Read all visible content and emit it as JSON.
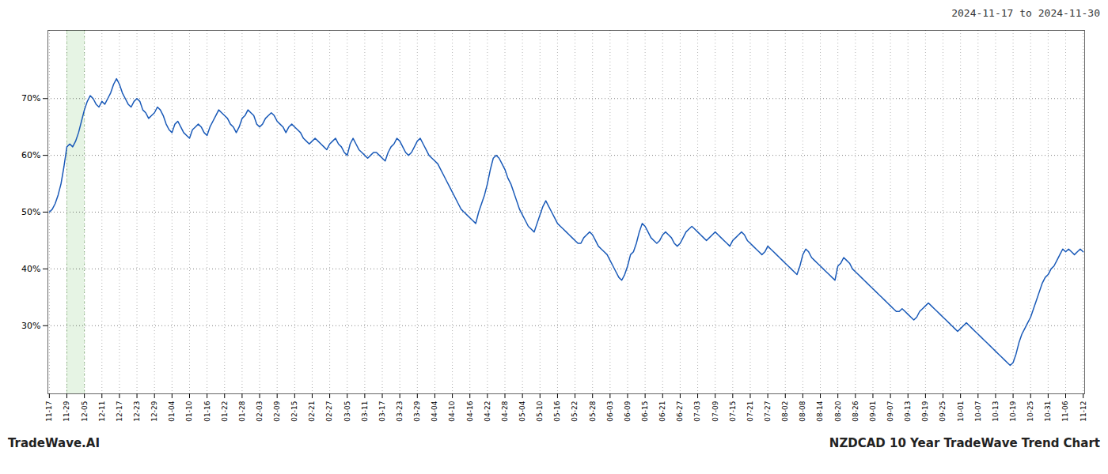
{
  "chart_data": {
    "type": "line",
    "title": "2024-11-17 to 2024-11-30",
    "annotations": [
      "TradeWave.AI",
      "NZDCAD 10 Year TradeWave Trend Chart"
    ],
    "color": "#1a5ab8",
    "grid": true,
    "ylim": [
      18,
      82
    ],
    "yticks": [
      {
        "value": 30,
        "label": "30%"
      },
      {
        "value": 40,
        "label": "40%"
      },
      {
        "value": 50,
        "label": "50%"
      },
      {
        "value": 60,
        "label": "60%"
      },
      {
        "value": 70,
        "label": "70%"
      }
    ],
    "highlight": {
      "start": "11-29",
      "end": "12-05",
      "color": "#d6ecd2"
    },
    "categories": [
      "11-17",
      null,
      null,
      null,
      null,
      null,
      "11-29",
      null,
      null,
      null,
      null,
      null,
      "12-05",
      null,
      null,
      null,
      null,
      null,
      "12-11",
      null,
      null,
      null,
      null,
      null,
      "12-17",
      null,
      null,
      null,
      null,
      null,
      "12-23",
      null,
      null,
      null,
      null,
      null,
      "12-29",
      null,
      null,
      null,
      null,
      null,
      "01-04",
      null,
      null,
      null,
      null,
      null,
      "01-10",
      null,
      null,
      null,
      null,
      null,
      "01-16",
      null,
      null,
      null,
      null,
      null,
      "01-22",
      null,
      null,
      null,
      null,
      null,
      "01-28",
      null,
      null,
      null,
      null,
      null,
      "02-03",
      null,
      null,
      null,
      null,
      null,
      "02-09",
      null,
      null,
      null,
      null,
      null,
      "02-15",
      null,
      null,
      null,
      null,
      null,
      "02-21",
      null,
      null,
      null,
      null,
      null,
      "02-27",
      null,
      null,
      null,
      null,
      null,
      "03-05",
      null,
      null,
      null,
      null,
      null,
      "03-11",
      null,
      null,
      null,
      null,
      null,
      "03-17",
      null,
      null,
      null,
      null,
      null,
      "03-23",
      null,
      null,
      null,
      null,
      null,
      "03-29",
      null,
      null,
      null,
      null,
      null,
      "04-04",
      null,
      null,
      null,
      null,
      null,
      "04-10",
      null,
      null,
      null,
      null,
      null,
      "04-16",
      null,
      null,
      null,
      null,
      null,
      "04-22",
      null,
      null,
      null,
      null,
      null,
      "04-28",
      null,
      null,
      null,
      null,
      null,
      "05-04",
      null,
      null,
      null,
      null,
      null,
      "05-10",
      null,
      null,
      null,
      null,
      null,
      "05-16",
      null,
      null,
      null,
      null,
      null,
      "05-22",
      null,
      null,
      null,
      null,
      null,
      "05-28",
      null,
      null,
      null,
      null,
      null,
      "06-03",
      null,
      null,
      null,
      null,
      null,
      "06-09",
      null,
      null,
      null,
      null,
      null,
      "06-15",
      null,
      null,
      null,
      null,
      null,
      "06-21",
      null,
      null,
      null,
      null,
      null,
      "06-27",
      null,
      null,
      null,
      null,
      null,
      "07-03",
      null,
      null,
      null,
      null,
      null,
      "07-09",
      null,
      null,
      null,
      null,
      null,
      "07-15",
      null,
      null,
      null,
      null,
      null,
      "07-21",
      null,
      null,
      null,
      null,
      null,
      "07-27",
      null,
      null,
      null,
      null,
      null,
      "08-02",
      null,
      null,
      null,
      null,
      null,
      "08-08",
      null,
      null,
      null,
      null,
      null,
      "08-14",
      null,
      null,
      null,
      null,
      null,
      "08-20",
      null,
      null,
      null,
      null,
      null,
      "08-26",
      null,
      null,
      null,
      null,
      null,
      "09-01",
      null,
      null,
      null,
      null,
      null,
      "09-07",
      null,
      null,
      null,
      null,
      null,
      "09-13",
      null,
      null,
      null,
      null,
      null,
      "09-19",
      null,
      null,
      null,
      null,
      null,
      "09-25",
      null,
      null,
      null,
      null,
      null,
      "10-01",
      null,
      null,
      null,
      null,
      null,
      "10-07",
      null,
      null,
      null,
      null,
      null,
      "10-13",
      null,
      null,
      null,
      null,
      null,
      "10-19",
      null,
      null,
      null,
      null,
      null,
      "10-25",
      null,
      null,
      null,
      null,
      null,
      "10-31",
      null,
      null,
      null,
      null,
      null,
      "11-06",
      null,
      null,
      null,
      null,
      null,
      "11-12"
    ],
    "values": [
      50.0,
      50.5,
      51.5,
      53.0,
      55.0,
      58.0,
      61.5,
      62.0,
      61.5,
      62.5,
      64.0,
      66.0,
      68.0,
      69.5,
      70.5,
      70.0,
      69.0,
      68.5,
      69.5,
      69.0,
      70.0,
      71.0,
      72.5,
      73.5,
      72.5,
      71.0,
      70.0,
      69.0,
      68.5,
      69.5,
      70.0,
      69.5,
      68.0,
      67.5,
      66.5,
      67.0,
      67.5,
      68.5,
      68.0,
      67.0,
      65.5,
      64.5,
      64.0,
      65.5,
      66.0,
      65.0,
      64.0,
      63.5,
      63.0,
      64.5,
      65.0,
      65.5,
      65.0,
      64.0,
      63.5,
      65.0,
      66.0,
      67.0,
      68.0,
      67.5,
      67.0,
      66.5,
      65.5,
      65.0,
      64.0,
      65.0,
      66.5,
      67.0,
      68.0,
      67.5,
      67.0,
      65.5,
      65.0,
      65.5,
      66.5,
      67.0,
      67.5,
      67.0,
      66.0,
      65.5,
      65.0,
      64.0,
      65.0,
      65.5,
      65.0,
      64.5,
      64.0,
      63.0,
      62.5,
      62.0,
      62.5,
      63.0,
      62.5,
      62.0,
      61.5,
      61.0,
      62.0,
      62.5,
      63.0,
      62.0,
      61.5,
      60.5,
      60.0,
      62.0,
      63.0,
      62.0,
      61.0,
      60.5,
      60.0,
      59.5,
      60.0,
      60.5,
      60.5,
      60.0,
      59.5,
      59.0,
      60.5,
      61.5,
      62.0,
      63.0,
      62.5,
      61.5,
      60.5,
      60.0,
      60.5,
      61.5,
      62.5,
      63.0,
      62.0,
      61.0,
      60.0,
      59.5,
      59.0,
      58.5,
      57.5,
      56.5,
      55.5,
      54.5,
      53.5,
      52.5,
      51.5,
      50.5,
      50.0,
      49.5,
      49.0,
      48.5,
      48.0,
      50.0,
      51.5,
      53.0,
      55.0,
      57.5,
      59.5,
      60.0,
      59.5,
      58.5,
      57.5,
      56.0,
      55.0,
      53.5,
      52.0,
      50.5,
      49.5,
      48.5,
      47.5,
      47.0,
      46.5,
      48.0,
      49.5,
      51.0,
      52.0,
      51.0,
      50.0,
      49.0,
      48.0,
      47.5,
      47.0,
      46.5,
      46.0,
      45.5,
      45.0,
      44.5,
      44.5,
      45.5,
      46.0,
      46.5,
      46.0,
      45.0,
      44.0,
      43.5,
      43.0,
      42.5,
      41.5,
      40.5,
      39.5,
      38.5,
      38.0,
      39.0,
      40.5,
      42.5,
      43.0,
      44.5,
      46.5,
      48.0,
      47.5,
      46.5,
      45.5,
      45.0,
      44.5,
      45.0,
      46.0,
      46.5,
      46.0,
      45.5,
      44.5,
      44.0,
      44.5,
      45.5,
      46.5,
      47.0,
      47.5,
      47.0,
      46.5,
      46.0,
      45.5,
      45.0,
      45.5,
      46.0,
      46.5,
      46.0,
      45.5,
      45.0,
      44.5,
      44.0,
      45.0,
      45.5,
      46.0,
      46.5,
      46.0,
      45.0,
      44.5,
      44.0,
      43.5,
      43.0,
      42.5,
      43.0,
      44.0,
      43.5,
      43.0,
      42.5,
      42.0,
      41.5,
      41.0,
      40.5,
      40.0,
      39.5,
      39.0,
      40.5,
      42.5,
      43.5,
      43.0,
      42.0,
      41.5,
      41.0,
      40.5,
      40.0,
      39.5,
      39.0,
      38.5,
      38.0,
      40.5,
      41.0,
      42.0,
      41.5,
      41.0,
      40.0,
      39.5,
      39.0,
      38.5,
      38.0,
      37.5,
      37.0,
      36.5,
      36.0,
      35.5,
      35.0,
      34.5,
      34.0,
      33.5,
      33.0,
      32.5,
      32.5,
      33.0,
      32.5,
      32.0,
      31.5,
      31.0,
      31.5,
      32.5,
      33.0,
      33.5,
      34.0,
      33.5,
      33.0,
      32.5,
      32.0,
      31.5,
      31.0,
      30.5,
      30.0,
      29.5,
      29.0,
      29.5,
      30.0,
      30.5,
      30.0,
      29.5,
      29.0,
      28.5,
      28.0,
      27.5,
      27.0,
      26.5,
      26.0,
      25.5,
      25.0,
      24.5,
      24.0,
      23.5,
      23.0,
      23.5,
      25.0,
      27.0,
      28.5,
      29.5,
      30.5,
      31.5,
      33.0,
      34.5,
      36.0,
      37.5,
      38.5,
      39.0,
      40.0,
      40.5,
      41.5,
      42.5,
      43.5,
      43.0,
      43.5,
      43.0,
      42.5,
      43.0,
      43.5,
      43.0
    ]
  }
}
